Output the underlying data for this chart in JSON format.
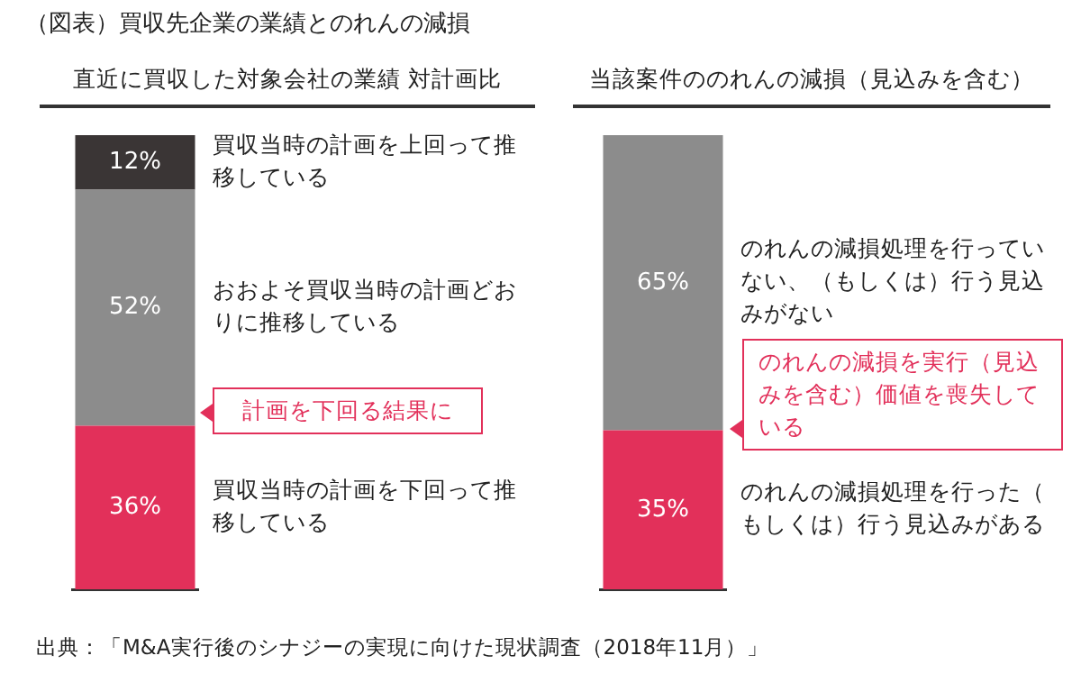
{
  "chart_data": [
    {
      "type": "bar",
      "title": "（図表）買収先企業の業績とのれんの減損",
      "subtitle": "直近に買収した対象会社の業績 対計画比",
      "categories": [
        null
      ],
      "stacked": true,
      "ylim": [
        0,
        100
      ],
      "tick_labels": false,
      "legend": false,
      "series": [
        {
          "name": "買収当時の計画を下回って推移している",
          "color": "#e2305a",
          "values": [
            36
          ],
          "value_labels": [
            "36%"
          ]
        },
        {
          "name": "おおよそ買収当時の計画どおりに推移している",
          "color": "#8c8c8c",
          "values": [
            52
          ],
          "value_labels": [
            "52%"
          ]
        },
        {
          "name": "買収当時の計画を上回って推移している",
          "color": "#3a3535",
          "values": [
            12
          ],
          "value_labels": [
            "12%"
          ]
        }
      ],
      "annotations": [
        "計画を下回る結果に"
      ]
    },
    {
      "type": "bar",
      "subtitle": "当該案件ののれんの減損（見込みを含む）",
      "categories": [
        null
      ],
      "stacked": true,
      "ylim": [
        0,
        100
      ],
      "tick_labels": false,
      "legend": false,
      "series": [
        {
          "name": "のれんの減損処理を行った（もしくは）行う見込みがある",
          "color": "#e2305a",
          "values": [
            35
          ],
          "value_labels": [
            "35%"
          ]
        },
        {
          "name": "のれんの減損処理を行っていない、（もしくは）行う見込みがない",
          "color": "#8c8c8c",
          "values": [
            65
          ],
          "value_labels": [
            "65%"
          ]
        }
      ],
      "annotations": [
        "のれんの減損を実行（見込みを含む）価値を喪失している",
        "出典：「M&A実行後のシナジーの実現に向けた現状調査（2018年11月）」"
      ]
    }
  ]
}
